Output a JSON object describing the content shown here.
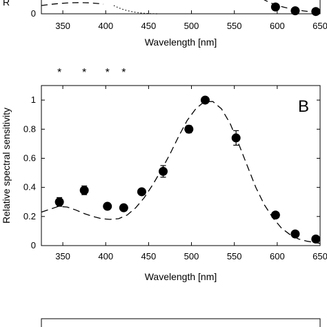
{
  "top_panel": {
    "xlabel": "Wavelength [nm]",
    "ylabel_fragment": "R",
    "x_ticks": [
      "350",
      "400",
      "450",
      "500",
      "550",
      "600",
      "650"
    ],
    "y_ticks": [
      "0"
    ],
    "points": [
      {
        "x": 598,
        "y": 0.09
      },
      {
        "x": 621,
        "y": 0.04
      },
      {
        "x": 645,
        "y": 0.03
      }
    ]
  },
  "chart_data": {
    "type": "scatter",
    "panel_label": "B",
    "xlabel": "Wavelength [nm]",
    "ylabel": "Relative spectral sensitivity",
    "xlim": [
      325,
      650
    ],
    "ylim": [
      0,
      1.1
    ],
    "x_ticks": [
      "350",
      "400",
      "450",
      "500",
      "550",
      "600",
      "650"
    ],
    "y_ticks": [
      "0",
      "0.2",
      "0.4",
      "0.6",
      "0.8",
      "1"
    ],
    "significance_marks": [
      {
        "x": 346,
        "label": "*"
      },
      {
        "x": 375,
        "label": "*"
      },
      {
        "x": 402,
        "label": "*"
      },
      {
        "x": 421,
        "label": "*"
      }
    ],
    "series": [
      {
        "kind": "measured",
        "points": [
          {
            "x": 346,
            "y": 0.3,
            "err": 0.03
          },
          {
            "x": 375,
            "y": 0.38,
            "err": 0.03
          },
          {
            "x": 402,
            "y": 0.27,
            "err": 0.015
          },
          {
            "x": 421,
            "y": 0.26,
            "err": 0.015
          },
          {
            "x": 442,
            "y": 0.37,
            "err": 0.015
          },
          {
            "x": 467,
            "y": 0.51,
            "err": 0.04
          },
          {
            "x": 497,
            "y": 0.8,
            "err": 0.025
          },
          {
            "x": 516,
            "y": 1.0,
            "err": 0.01
          },
          {
            "x": 552,
            "y": 0.74,
            "err": 0.05
          },
          {
            "x": 598,
            "y": 0.21,
            "err": 0.01
          },
          {
            "x": 621,
            "y": 0.08,
            "err": 0.01
          },
          {
            "x": 645,
            "y": 0.045,
            "err": 0.01
          }
        ]
      },
      {
        "kind": "template",
        "style": "dashed",
        "points": [
          {
            "x": 325,
            "y": 0.23
          },
          {
            "x": 335,
            "y": 0.25
          },
          {
            "x": 345,
            "y": 0.27
          },
          {
            "x": 355,
            "y": 0.265
          },
          {
            "x": 365,
            "y": 0.245
          },
          {
            "x": 375,
            "y": 0.22
          },
          {
            "x": 385,
            "y": 0.2
          },
          {
            "x": 395,
            "y": 0.185
          },
          {
            "x": 405,
            "y": 0.18
          },
          {
            "x": 415,
            "y": 0.185
          },
          {
            "x": 425,
            "y": 0.21
          },
          {
            "x": 435,
            "y": 0.26
          },
          {
            "x": 445,
            "y": 0.33
          },
          {
            "x": 455,
            "y": 0.42
          },
          {
            "x": 465,
            "y": 0.52
          },
          {
            "x": 475,
            "y": 0.63
          },
          {
            "x": 485,
            "y": 0.75
          },
          {
            "x": 495,
            "y": 0.86
          },
          {
            "x": 505,
            "y": 0.94
          },
          {
            "x": 515,
            "y": 0.99
          },
          {
            "x": 525,
            "y": 0.99
          },
          {
            "x": 535,
            "y": 0.94
          },
          {
            "x": 545,
            "y": 0.84
          },
          {
            "x": 555,
            "y": 0.7
          },
          {
            "x": 565,
            "y": 0.55
          },
          {
            "x": 575,
            "y": 0.4
          },
          {
            "x": 585,
            "y": 0.28
          },
          {
            "x": 595,
            "y": 0.19
          },
          {
            "x": 605,
            "y": 0.12
          },
          {
            "x": 615,
            "y": 0.075
          },
          {
            "x": 625,
            "y": 0.045
          },
          {
            "x": 635,
            "y": 0.03
          },
          {
            "x": 645,
            "y": 0.02
          },
          {
            "x": 650,
            "y": 0.015
          }
        ]
      }
    ]
  }
}
